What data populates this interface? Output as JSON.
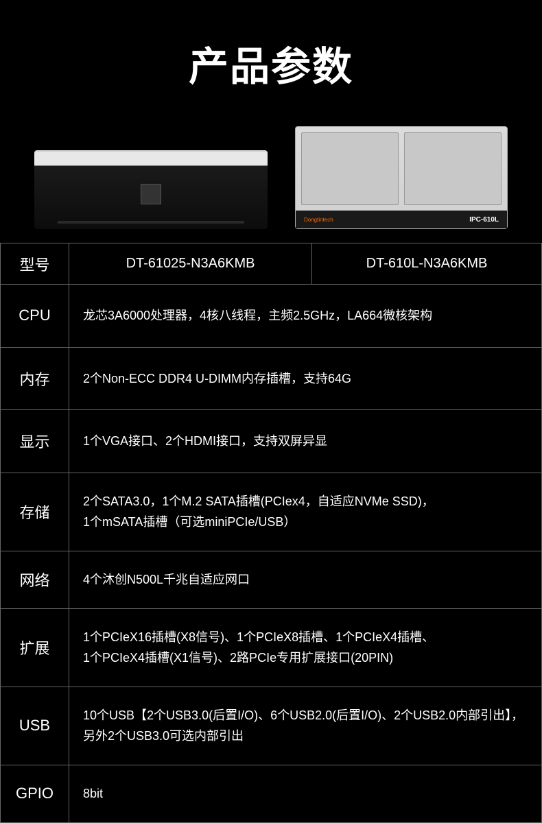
{
  "title": "产品参数",
  "products": {
    "left_model": "DT-61025-N3A6KMB",
    "right_model": "DT-610L-N3A6KMB",
    "right_brand": "Dongtintech",
    "right_label": "IPC-610L"
  },
  "table": {
    "model_label": "型号",
    "rows": [
      {
        "label": "CPU",
        "value": "龙芯3A6000处理器，4核八线程，主频2.5GHz，LA664微核架构"
      },
      {
        "label": "内存",
        "value": "2个Non-ECC DDR4 U-DIMM内存插槽，支持64G"
      },
      {
        "label": "显示",
        "value": "1个VGA接口、2个HDMI接口，支持双屏异显"
      },
      {
        "label": "存储",
        "value": "2个SATA3.0，1个M.2 SATA插槽(PCIex4，自适应NVMe SSD)，\n1个mSATA插槽（可选miniPCIe/USB）"
      },
      {
        "label": "网络",
        "value": "4个沐创N500L千兆自适应网口"
      },
      {
        "label": "扩展",
        "value": "1个PCIeX16插槽(X8信号)、1个PCIeX8插槽、1个PCIeX4插槽、\n1个PCIeX4插槽(X1信号)、2路PCIe专用扩展接口(20PIN)"
      },
      {
        "label": "USB",
        "value": "10个USB【2个USB3.0(后置I/O)、6个USB2.0(后置I/O)、2个USB2.0内部引出】，另外2个USB3.0可选内部引出"
      },
      {
        "label": "GPIO",
        "value": "8bit"
      }
    ]
  },
  "colors": {
    "background": "#000000",
    "text": "#ffffff",
    "border": "#666666"
  }
}
